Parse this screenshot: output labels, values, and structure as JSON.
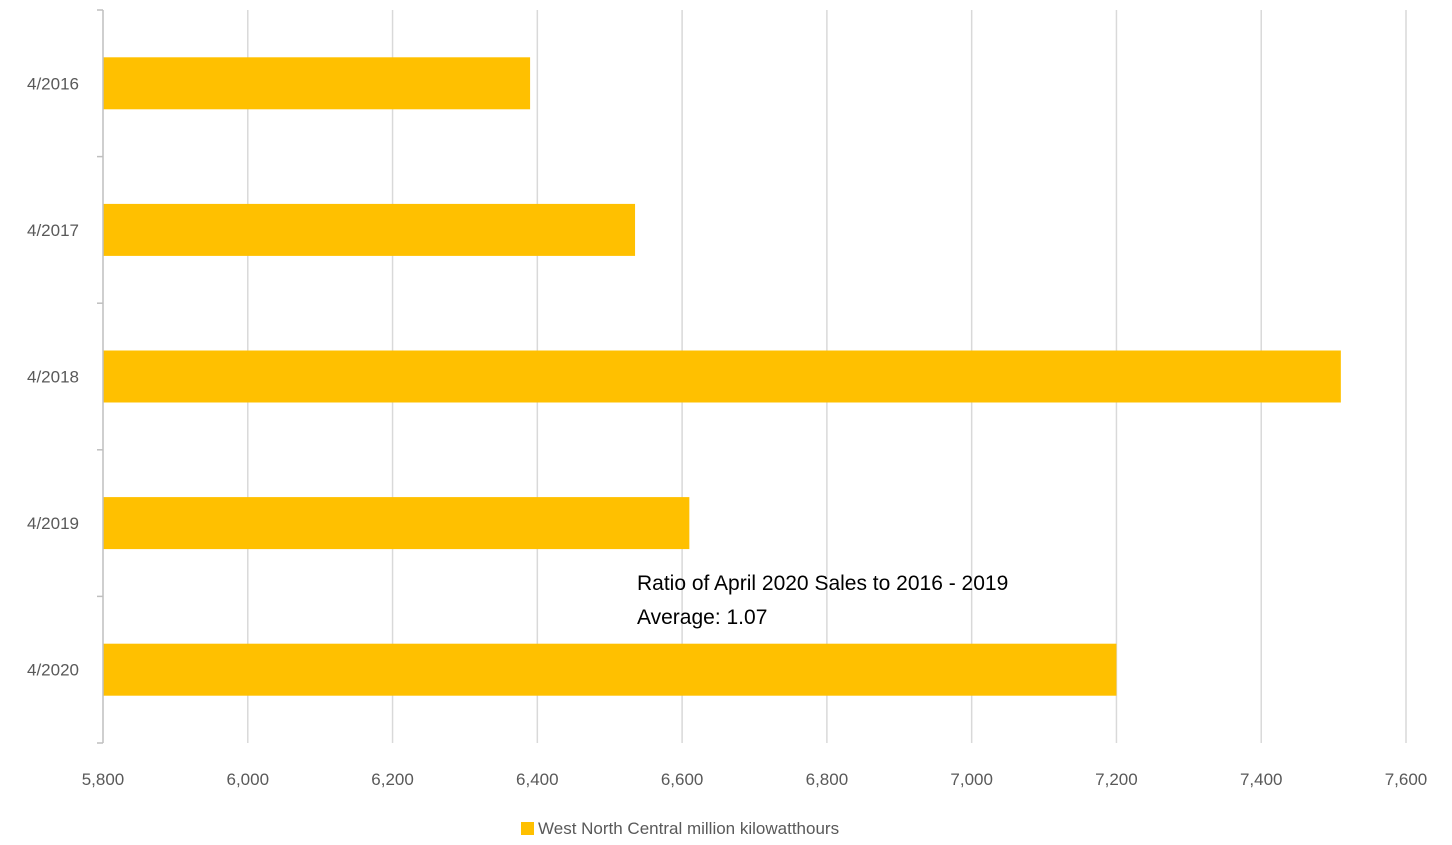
{
  "chart_data": {
    "type": "bar",
    "orientation": "horizontal",
    "categories": [
      "4/2016",
      "4/2017",
      "4/2018",
      "4/2019",
      "4/2020"
    ],
    "series": [
      {
        "name": "West North Central million kilowatthours",
        "values": [
          6390,
          6535,
          7510,
          6610,
          7200
        ],
        "color": "#FFC000"
      }
    ],
    "xlim": [
      5800,
      7600
    ],
    "x_ticks": [
      5800,
      6000,
      6200,
      6400,
      6600,
      6800,
      7000,
      7200,
      7400,
      7600
    ],
    "x_tick_labels": [
      "5,800",
      "6,000",
      "6,200",
      "6,400",
      "6,600",
      "6,800",
      "7,000",
      "7,200",
      "7,400",
      "7,600"
    ],
    "grid": "vertical",
    "legend_position": "bottom",
    "annotation": {
      "line1": "Ratio of April 2020 Sales to 2016 - 2019",
      "line2": "Average: 1.07"
    },
    "colors": {
      "bar": "#FFC000",
      "grid": "#d9d9d9",
      "axis": "#bfbfbf",
      "tick_text": "#595959"
    }
  }
}
